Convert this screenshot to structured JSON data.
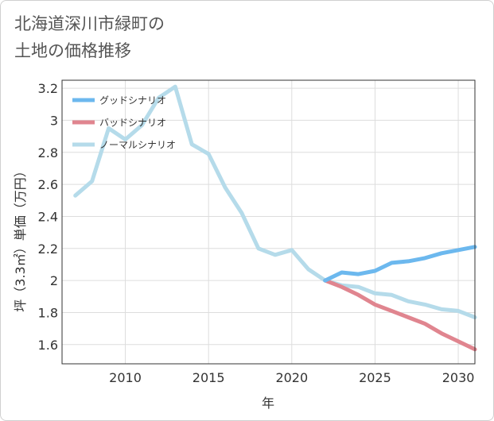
{
  "title_lines": [
    "北海道深川市緑町の",
    "土地の価格推移"
  ],
  "chart_data": {
    "type": "line",
    "xlabel": "年",
    "ylabel": "坪（3.3㎡）単価（万円）",
    "xlim": [
      2006.2,
      2031
    ],
    "ylim": [
      1.48,
      3.25
    ],
    "x_ticks": [
      2010,
      2015,
      2020,
      2025,
      2030
    ],
    "y_ticks": [
      1.6,
      1.8,
      2,
      2.2,
      2.4,
      2.6,
      2.8,
      3,
      3.2
    ],
    "y_tick_labels": [
      "1.6",
      "1.8",
      "2",
      "2.2",
      "2.4",
      "2.6",
      "2.8",
      "3",
      "3.2"
    ],
    "grid": true,
    "legend_position": "top-left",
    "series": [
      {
        "name": "グッドシナリオ",
        "color": "#6cb8ee",
        "x": [
          2022,
          2023,
          2024,
          2025,
          2026,
          2027,
          2028,
          2029,
          2030,
          2031
        ],
        "y": [
          2.0,
          2.05,
          2.04,
          2.06,
          2.11,
          2.12,
          2.14,
          2.17,
          2.19,
          2.21
        ]
      },
      {
        "name": "バッドシナリオ",
        "color": "#e0858f",
        "x": [
          2022,
          2023,
          2024,
          2025,
          2026,
          2027,
          2028,
          2029,
          2030,
          2031
        ],
        "y": [
          2.0,
          1.96,
          1.91,
          1.85,
          1.81,
          1.77,
          1.73,
          1.67,
          1.62,
          1.57
        ]
      },
      {
        "name": "ノーマルシナリオ",
        "color": "#b5dbea",
        "x": [
          2007,
          2008,
          2009,
          2010,
          2011,
          2012,
          2013,
          2014,
          2015,
          2016,
          2017,
          2018,
          2019,
          2020,
          2021,
          2022,
          2023,
          2024,
          2025,
          2026,
          2027,
          2028,
          2029,
          2030,
          2031
        ],
        "y": [
          2.53,
          2.62,
          2.95,
          2.88,
          2.97,
          3.14,
          3.21,
          2.85,
          2.79,
          2.58,
          2.42,
          2.2,
          2.16,
          2.19,
          2.07,
          2.0,
          1.97,
          1.96,
          1.92,
          1.91,
          1.87,
          1.85,
          1.82,
          1.81,
          1.77
        ]
      }
    ]
  }
}
